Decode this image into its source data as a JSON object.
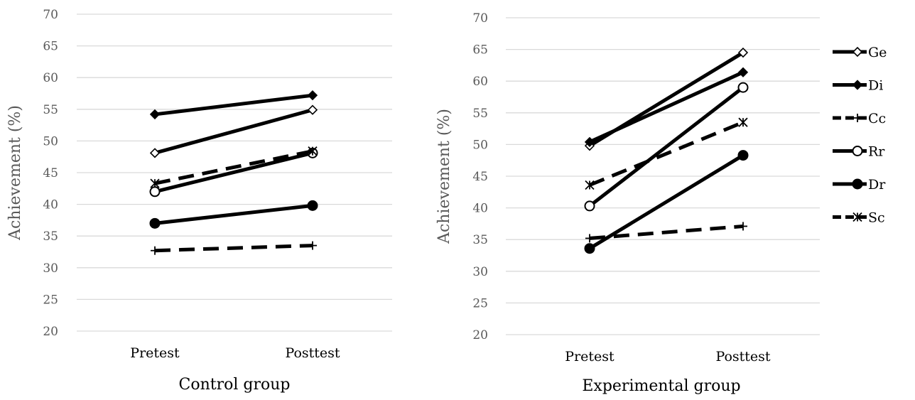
{
  "chart_data": [
    {
      "type": "line",
      "xlabel": "Control group",
      "ylabel": "Achievement (%)",
      "categories": [
        "Pretest",
        "Posttest"
      ],
      "ylim": [
        20,
        70
      ],
      "yticks": [
        20,
        25,
        30,
        35,
        40,
        45,
        50,
        55,
        60,
        65,
        70
      ],
      "grid": true,
      "series": [
        {
          "name": "Ge",
          "values": [
            48.1,
            54.9
          ],
          "marker": "diamond-open",
          "dash": false
        },
        {
          "name": "Di",
          "values": [
            54.2,
            57.2
          ],
          "marker": "diamond-filled",
          "dash": false
        },
        {
          "name": "Cc",
          "values": [
            32.7,
            33.5
          ],
          "marker": "plus",
          "dash": true
        },
        {
          "name": "Rr",
          "values": [
            42.0,
            48.1
          ],
          "marker": "circle-open",
          "dash": false
        },
        {
          "name": "Dr",
          "values": [
            37.0,
            39.8
          ],
          "marker": "circle-filled",
          "dash": false
        },
        {
          "name": "Sc",
          "values": [
            43.3,
            48.4
          ],
          "marker": "asterisk",
          "dash": true
        }
      ]
    },
    {
      "type": "line",
      "xlabel": "Experimental group",
      "ylabel": "Achievement (%)",
      "categories": [
        "Pretest",
        "Posttest"
      ],
      "ylim": [
        20,
        70
      ],
      "yticks": [
        20,
        25,
        30,
        35,
        40,
        45,
        50,
        55,
        60,
        65,
        70
      ],
      "grid": true,
      "legend": "right",
      "series": [
        {
          "name": "Ge",
          "values": [
            49.8,
            64.5
          ],
          "marker": "diamond-open",
          "dash": false
        },
        {
          "name": "Di",
          "values": [
            50.4,
            61.4
          ],
          "marker": "diamond-filled",
          "dash": false
        },
        {
          "name": "Cc",
          "values": [
            35.2,
            37.1
          ],
          "marker": "plus",
          "dash": true
        },
        {
          "name": "Rr",
          "values": [
            40.3,
            59.0
          ],
          "marker": "circle-open",
          "dash": false
        },
        {
          "name": "Dr",
          "values": [
            33.6,
            48.3
          ],
          "marker": "circle-filled",
          "dash": false
        },
        {
          "name": "Sc",
          "values": [
            43.6,
            53.5
          ],
          "marker": "asterisk",
          "dash": true
        }
      ]
    }
  ],
  "colors": {
    "line": "#000000",
    "grid": "#d9d9d9",
    "tick_text": "#595959"
  }
}
